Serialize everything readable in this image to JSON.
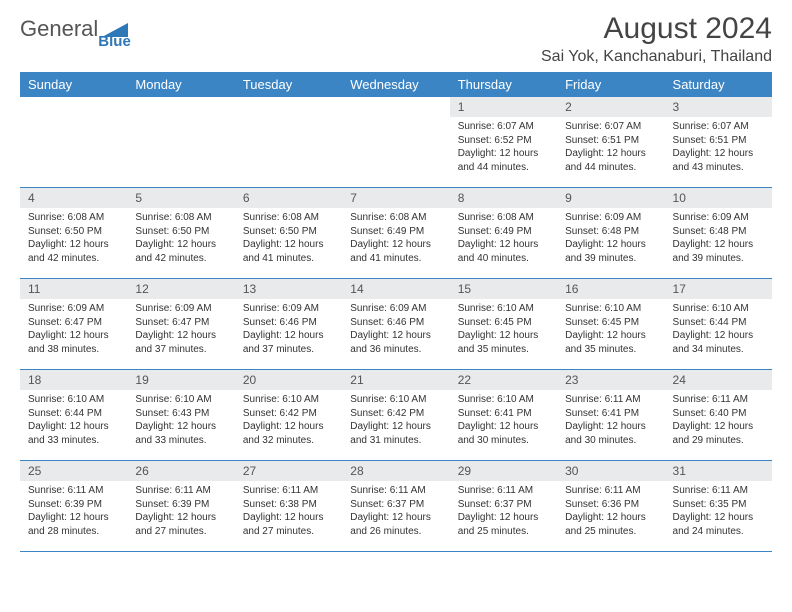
{
  "logo": {
    "text1": "General",
    "text2": "Blue"
  },
  "title": "August 2024",
  "location": "Sai Yok, Kanchanaburi, Thailand",
  "colors": {
    "header_bg": "#3c85c4",
    "daynum_bg": "#e9eaeb",
    "border": "#3c85c4",
    "text": "#333333"
  },
  "weekdays": [
    "Sunday",
    "Monday",
    "Tuesday",
    "Wednesday",
    "Thursday",
    "Friday",
    "Saturday"
  ],
  "weeks": [
    [
      {
        "day": "",
        "sunrise": "",
        "sunset": "",
        "daylight": ""
      },
      {
        "day": "",
        "sunrise": "",
        "sunset": "",
        "daylight": ""
      },
      {
        "day": "",
        "sunrise": "",
        "sunset": "",
        "daylight": ""
      },
      {
        "day": "",
        "sunrise": "",
        "sunset": "",
        "daylight": ""
      },
      {
        "day": "1",
        "sunrise": "Sunrise: 6:07 AM",
        "sunset": "Sunset: 6:52 PM",
        "daylight": "Daylight: 12 hours and 44 minutes."
      },
      {
        "day": "2",
        "sunrise": "Sunrise: 6:07 AM",
        "sunset": "Sunset: 6:51 PM",
        "daylight": "Daylight: 12 hours and 44 minutes."
      },
      {
        "day": "3",
        "sunrise": "Sunrise: 6:07 AM",
        "sunset": "Sunset: 6:51 PM",
        "daylight": "Daylight: 12 hours and 43 minutes."
      }
    ],
    [
      {
        "day": "4",
        "sunrise": "Sunrise: 6:08 AM",
        "sunset": "Sunset: 6:50 PM",
        "daylight": "Daylight: 12 hours and 42 minutes."
      },
      {
        "day": "5",
        "sunrise": "Sunrise: 6:08 AM",
        "sunset": "Sunset: 6:50 PM",
        "daylight": "Daylight: 12 hours and 42 minutes."
      },
      {
        "day": "6",
        "sunrise": "Sunrise: 6:08 AM",
        "sunset": "Sunset: 6:50 PM",
        "daylight": "Daylight: 12 hours and 41 minutes."
      },
      {
        "day": "7",
        "sunrise": "Sunrise: 6:08 AM",
        "sunset": "Sunset: 6:49 PM",
        "daylight": "Daylight: 12 hours and 41 minutes."
      },
      {
        "day": "8",
        "sunrise": "Sunrise: 6:08 AM",
        "sunset": "Sunset: 6:49 PM",
        "daylight": "Daylight: 12 hours and 40 minutes."
      },
      {
        "day": "9",
        "sunrise": "Sunrise: 6:09 AM",
        "sunset": "Sunset: 6:48 PM",
        "daylight": "Daylight: 12 hours and 39 minutes."
      },
      {
        "day": "10",
        "sunrise": "Sunrise: 6:09 AM",
        "sunset": "Sunset: 6:48 PM",
        "daylight": "Daylight: 12 hours and 39 minutes."
      }
    ],
    [
      {
        "day": "11",
        "sunrise": "Sunrise: 6:09 AM",
        "sunset": "Sunset: 6:47 PM",
        "daylight": "Daylight: 12 hours and 38 minutes."
      },
      {
        "day": "12",
        "sunrise": "Sunrise: 6:09 AM",
        "sunset": "Sunset: 6:47 PM",
        "daylight": "Daylight: 12 hours and 37 minutes."
      },
      {
        "day": "13",
        "sunrise": "Sunrise: 6:09 AM",
        "sunset": "Sunset: 6:46 PM",
        "daylight": "Daylight: 12 hours and 37 minutes."
      },
      {
        "day": "14",
        "sunrise": "Sunrise: 6:09 AM",
        "sunset": "Sunset: 6:46 PM",
        "daylight": "Daylight: 12 hours and 36 minutes."
      },
      {
        "day": "15",
        "sunrise": "Sunrise: 6:10 AM",
        "sunset": "Sunset: 6:45 PM",
        "daylight": "Daylight: 12 hours and 35 minutes."
      },
      {
        "day": "16",
        "sunrise": "Sunrise: 6:10 AM",
        "sunset": "Sunset: 6:45 PM",
        "daylight": "Daylight: 12 hours and 35 minutes."
      },
      {
        "day": "17",
        "sunrise": "Sunrise: 6:10 AM",
        "sunset": "Sunset: 6:44 PM",
        "daylight": "Daylight: 12 hours and 34 minutes."
      }
    ],
    [
      {
        "day": "18",
        "sunrise": "Sunrise: 6:10 AM",
        "sunset": "Sunset: 6:44 PM",
        "daylight": "Daylight: 12 hours and 33 minutes."
      },
      {
        "day": "19",
        "sunrise": "Sunrise: 6:10 AM",
        "sunset": "Sunset: 6:43 PM",
        "daylight": "Daylight: 12 hours and 33 minutes."
      },
      {
        "day": "20",
        "sunrise": "Sunrise: 6:10 AM",
        "sunset": "Sunset: 6:42 PM",
        "daylight": "Daylight: 12 hours and 32 minutes."
      },
      {
        "day": "21",
        "sunrise": "Sunrise: 6:10 AM",
        "sunset": "Sunset: 6:42 PM",
        "daylight": "Daylight: 12 hours and 31 minutes."
      },
      {
        "day": "22",
        "sunrise": "Sunrise: 6:10 AM",
        "sunset": "Sunset: 6:41 PM",
        "daylight": "Daylight: 12 hours and 30 minutes."
      },
      {
        "day": "23",
        "sunrise": "Sunrise: 6:11 AM",
        "sunset": "Sunset: 6:41 PM",
        "daylight": "Daylight: 12 hours and 30 minutes."
      },
      {
        "day": "24",
        "sunrise": "Sunrise: 6:11 AM",
        "sunset": "Sunset: 6:40 PM",
        "daylight": "Daylight: 12 hours and 29 minutes."
      }
    ],
    [
      {
        "day": "25",
        "sunrise": "Sunrise: 6:11 AM",
        "sunset": "Sunset: 6:39 PM",
        "daylight": "Daylight: 12 hours and 28 minutes."
      },
      {
        "day": "26",
        "sunrise": "Sunrise: 6:11 AM",
        "sunset": "Sunset: 6:39 PM",
        "daylight": "Daylight: 12 hours and 27 minutes."
      },
      {
        "day": "27",
        "sunrise": "Sunrise: 6:11 AM",
        "sunset": "Sunset: 6:38 PM",
        "daylight": "Daylight: 12 hours and 27 minutes."
      },
      {
        "day": "28",
        "sunrise": "Sunrise: 6:11 AM",
        "sunset": "Sunset: 6:37 PM",
        "daylight": "Daylight: 12 hours and 26 minutes."
      },
      {
        "day": "29",
        "sunrise": "Sunrise: 6:11 AM",
        "sunset": "Sunset: 6:37 PM",
        "daylight": "Daylight: 12 hours and 25 minutes."
      },
      {
        "day": "30",
        "sunrise": "Sunrise: 6:11 AM",
        "sunset": "Sunset: 6:36 PM",
        "daylight": "Daylight: 12 hours and 25 minutes."
      },
      {
        "day": "31",
        "sunrise": "Sunrise: 6:11 AM",
        "sunset": "Sunset: 6:35 PM",
        "daylight": "Daylight: 12 hours and 24 minutes."
      }
    ]
  ]
}
